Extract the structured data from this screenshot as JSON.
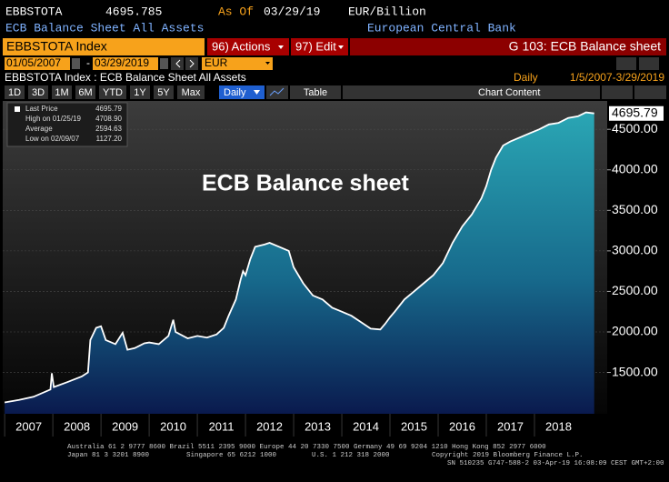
{
  "header": {
    "ticker": "EBBSTOTA",
    "last": "4695.785",
    "as_of_label": "As Of",
    "as_of": "03/29/19",
    "units": "EUR/Billion",
    "description": "ECB Balance Sheet All Assets",
    "source": "European Central Bank"
  },
  "toolbar": {
    "security": "EBBSTOTA Index",
    "actions": "96) Actions",
    "edit": "97) Edit",
    "page_title": "G 103: ECB Balance sheet",
    "date_start": "01/05/2007",
    "date_end": "03/29/2019",
    "currency": "EUR"
  },
  "chart_heading": {
    "title": "EBBSTOTA Index : ECB Balance Sheet All Assets",
    "frequency": "Daily",
    "range": "1/5/2007-3/29/2019"
  },
  "periods": [
    "1D",
    "3D",
    "1M",
    "6M",
    "YTD",
    "1Y",
    "5Y",
    "Max"
  ],
  "period_selected": "Daily",
  "table_button": "Table",
  "chart_content": "Chart Content",
  "legend": [
    {
      "label": "Last Price",
      "value": "4695.79"
    },
    {
      "label": "High on 01/25/19",
      "value": "4708.90"
    },
    {
      "label": "Average",
      "value": "2594.63"
    },
    {
      "label": "Low on 02/09/07",
      "value": "1127.20"
    }
  ],
  "chart_data": {
    "type": "area",
    "annotation": "ECB Balance sheet",
    "x": [
      2007.0,
      2007.3,
      2007.6,
      2007.95,
      2007.98,
      2008.02,
      2008.3,
      2008.6,
      2008.73,
      2008.78,
      2008.9,
      2009.0,
      2009.1,
      2009.3,
      2009.45,
      2009.55,
      2009.7,
      2009.9,
      2010.0,
      2010.2,
      2010.4,
      2010.5,
      2010.55,
      2010.8,
      2011.0,
      2011.2,
      2011.4,
      2011.55,
      2011.65,
      2011.8,
      2011.9,
      2011.95,
      2012.0,
      2012.1,
      2012.2,
      2012.4,
      2012.5,
      2012.7,
      2012.9,
      2013.0,
      2013.2,
      2013.4,
      2013.6,
      2013.8,
      2014.0,
      2014.2,
      2014.4,
      2014.6,
      2014.8,
      2014.9,
      2015.0,
      2015.1,
      2015.3,
      2015.5,
      2015.7,
      2015.9,
      2016.1,
      2016.3,
      2016.5,
      2016.7,
      2016.9,
      2017.0,
      2017.1,
      2017.2,
      2017.35,
      2017.5,
      2017.7,
      2017.9,
      2018.1,
      2018.3,
      2018.5,
      2018.7,
      2018.9,
      2019.07,
      2019.24
    ],
    "values": [
      1130,
      1160,
      1200,
      1290,
      1490,
      1320,
      1380,
      1450,
      1500,
      1900,
      2050,
      2070,
      1900,
      1850,
      1990,
      1780,
      1800,
      1860,
      1870,
      1850,
      1950,
      2150,
      2000,
      1920,
      1950,
      1930,
      1970,
      2050,
      2200,
      2400,
      2650,
      2750,
      2700,
      2900,
      3050,
      3080,
      3100,
      3050,
      3000,
      2800,
      2600,
      2450,
      2400,
      2300,
      2250,
      2200,
      2120,
      2040,
      2030,
      2100,
      2180,
      2250,
      2400,
      2500,
      2600,
      2700,
      2850,
      3100,
      3300,
      3450,
      3650,
      3800,
      4000,
      4150,
      4300,
      4350,
      4400,
      4450,
      4500,
      4560,
      4580,
      4640,
      4660,
      4709,
      4695.79
    ],
    "last_price": 4695.79,
    "color": "#ffffff",
    "xlim": [
      2006.96,
      2019.51
    ],
    "xticks": [
      2007,
      2008,
      2009,
      2010,
      2011,
      2012,
      2013,
      2014,
      2015,
      2016,
      2017,
      2018
    ],
    "ylim": [
      990,
      4850
    ],
    "yticks": [
      {
        "value": 1500,
        "label": "1500.00"
      },
      {
        "value": 2000,
        "label": "2000.00"
      },
      {
        "value": 2500,
        "label": "2500.00"
      },
      {
        "value": 3000,
        "label": "3000.00"
      },
      {
        "value": 3500,
        "label": "3500.00"
      },
      {
        "value": 4000,
        "label": "4000.00"
      },
      {
        "value": 4500,
        "label": "4500.00"
      }
    ],
    "grid": true
  },
  "footer": [
    "Australia 61 2 9777 8600 Brazil 5511 2395 9000 Europe 44 20 7330 7500 Germany 49 69 9204 1210 Hong Kong 852 2977 6000",
    "Japan 81 3 3201 8900",
    "Singapore 65 6212 1000",
    "U.S. 1 212 318 2000",
    "Copyright 2019 Bloomberg Finance L.P.",
    "SN 510235 G747-588-2 03-Apr-19 16:08:09 CEST GMT+2:00"
  ]
}
